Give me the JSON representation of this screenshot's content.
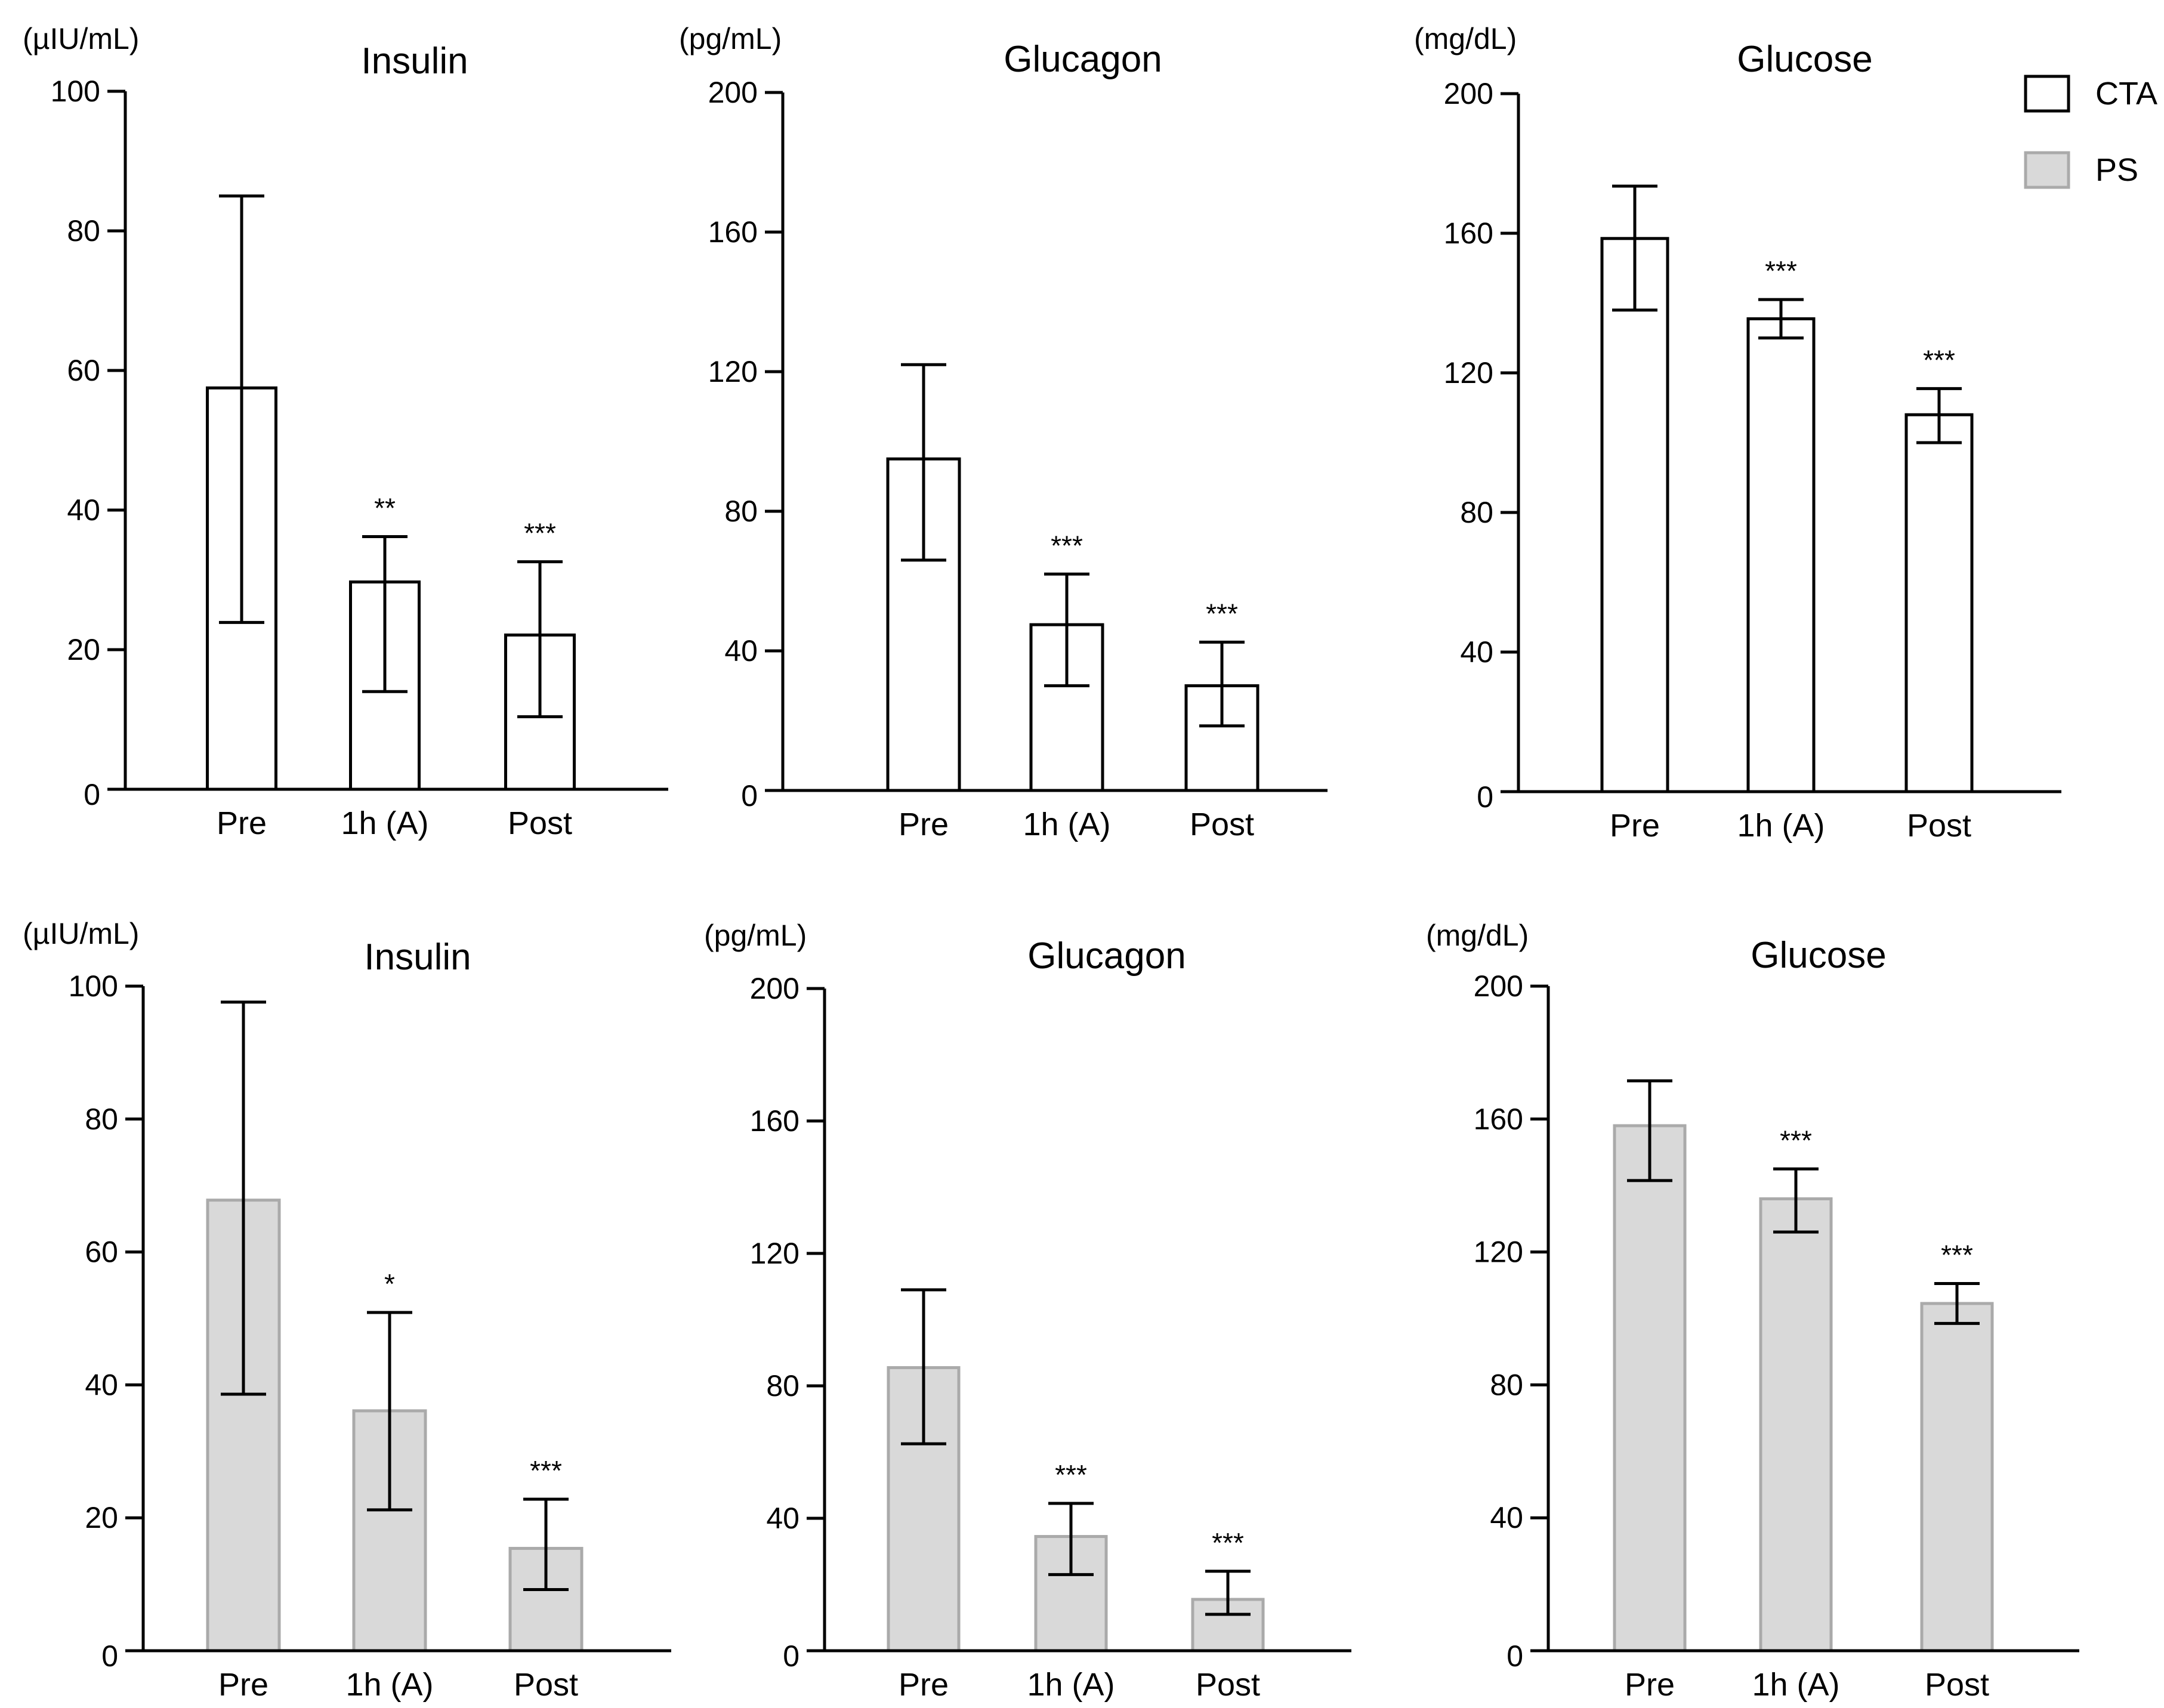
{
  "legend": {
    "items": [
      {
        "label": "CTA",
        "fill": "#ffffff",
        "stroke": "#000000"
      },
      {
        "label": "PS",
        "fill": "#d9d9d9",
        "stroke": "#aaaaaa"
      }
    ]
  },
  "chart_data": [
    {
      "type": "bar",
      "group": "CTA",
      "title": "Insulin",
      "unit": "(µIU/mL)",
      "categories": [
        "Pre",
        "1h (A)",
        "Post"
      ],
      "values": [
        57.5,
        29.7,
        22.1
      ],
      "err_low": [
        23.9,
        14.0,
        10.4
      ],
      "err_high": [
        85.0,
        36.2,
        32.6
      ],
      "significance": [
        "",
        "**",
        "***"
      ],
      "ylim": [
        0,
        100
      ],
      "yticks": [
        0,
        20,
        40,
        60,
        80,
        100
      ],
      "fill": "#ffffff",
      "stroke": "#000000"
    },
    {
      "type": "bar",
      "group": "CTA",
      "title": "Glucagon",
      "unit": "(pg/mL)",
      "categories": [
        "Pre",
        "1h (A)",
        "Post"
      ],
      "values": [
        95,
        47.5,
        30
      ],
      "err_low": [
        66,
        30,
        18.5
      ],
      "err_high": [
        122,
        62,
        42.5
      ],
      "significance": [
        "",
        "***",
        "***"
      ],
      "ylim": [
        0,
        200
      ],
      "yticks": [
        0,
        40,
        80,
        120,
        160,
        200
      ],
      "fill": "#ffffff",
      "stroke": "#000000"
    },
    {
      "type": "bar",
      "group": "CTA",
      "title": "Glucose",
      "unit": "(mg/dL)",
      "categories": [
        "Pre",
        "1h (A)",
        "Post"
      ],
      "values": [
        158.5,
        135.5,
        108
      ],
      "err_low": [
        138,
        130,
        100
      ],
      "err_high": [
        173.5,
        141,
        115.5
      ],
      "significance": [
        "",
        "***",
        "***"
      ],
      "ylim": [
        0,
        200
      ],
      "yticks": [
        0,
        40,
        80,
        120,
        160,
        200
      ],
      "fill": "#ffffff",
      "stroke": "#000000"
    },
    {
      "type": "bar",
      "group": "PS",
      "title": "Insulin",
      "unit": "(µIU/mL)",
      "categories": [
        "Pre",
        "1h (A)",
        "Post"
      ],
      "values": [
        67.8,
        36.1,
        15.4
      ],
      "err_low": [
        38.6,
        21.2,
        9.2
      ],
      "err_high": [
        97.6,
        50.9,
        22.8
      ],
      "significance": [
        "",
        "*",
        "***"
      ],
      "ylim": [
        0,
        100
      ],
      "yticks": [
        0,
        20,
        40,
        60,
        80,
        100
      ],
      "fill": "#d9d9d9",
      "stroke": "#aaaaaa"
    },
    {
      "type": "bar",
      "group": "PS",
      "title": "Glucagon",
      "unit": "(pg/mL)",
      "categories": [
        "Pre",
        "1h (A)",
        "Post"
      ],
      "values": [
        85.5,
        34.5,
        15.5
      ],
      "err_low": [
        62.5,
        23,
        11
      ],
      "err_high": [
        109,
        44.5,
        24
      ],
      "significance": [
        "",
        "***",
        "***"
      ],
      "ylim": [
        0,
        200
      ],
      "yticks": [
        0,
        40,
        80,
        120,
        160,
        200
      ],
      "fill": "#d9d9d9",
      "stroke": "#aaaaaa"
    },
    {
      "type": "bar",
      "group": "PS",
      "title": "Glucose",
      "unit": "(mg/dL)",
      "categories": [
        "Pre",
        "1h (A)",
        "Post"
      ],
      "values": [
        158,
        136,
        104.5
      ],
      "err_low": [
        141.5,
        126,
        98.5
      ],
      "err_high": [
        171.5,
        145,
        110.5
      ],
      "significance": [
        "",
        "***",
        "***"
      ],
      "ylim": [
        0,
        200
      ],
      "yticks": [
        0,
        40,
        80,
        120,
        160,
        200
      ],
      "fill": "#d9d9d9",
      "stroke": "#aaaaaa"
    }
  ]
}
